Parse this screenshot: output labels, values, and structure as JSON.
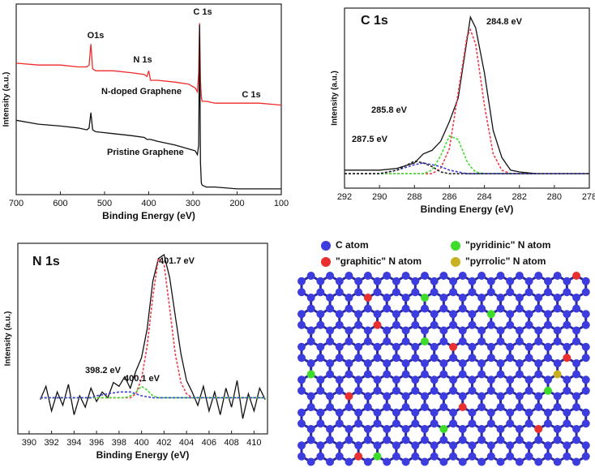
{
  "chart_data": [
    {
      "type": "line",
      "xlabel": "Binding Energy (eV)",
      "ylabel": "Intensity (a.u.)",
      "xlim": [
        700,
        100
      ],
      "ylim": [
        0,
        100
      ],
      "xticks": [
        700,
        600,
        500,
        400,
        300,
        200,
        100
      ],
      "annotations": [
        {
          "text": "O1s",
          "color": "#111111"
        },
        {
          "text": "N 1s",
          "color": "#111111"
        },
        {
          "text": "C 1s",
          "color": "#111111"
        },
        {
          "text": "C 1s",
          "color": "#111111"
        }
      ],
      "x": [
        700,
        650,
        600,
        560,
        540,
        535,
        531,
        527,
        520,
        480,
        440,
        410,
        404,
        400,
        396,
        380,
        340,
        310,
        295,
        290,
        287,
        285,
        283,
        281,
        279,
        270,
        250,
        200,
        150,
        100
      ],
      "series": [
        {
          "name": "N-doped Graphene",
          "color": "#ee2a2a",
          "values": [
            69,
            68,
            68,
            67,
            67,
            68,
            79,
            66,
            65,
            65,
            64,
            63,
            62,
            65,
            60,
            60,
            59,
            58,
            56,
            54,
            64,
            90,
            60,
            51,
            49,
            49,
            48,
            48,
            48,
            47
          ]
        },
        {
          "name": "Pristine Graphene",
          "color": "#111111",
          "values": [
            39,
            37,
            36,
            35,
            34,
            35,
            43,
            34,
            33,
            32,
            31,
            30,
            29,
            29,
            29,
            28,
            26,
            24,
            23,
            21,
            26,
            89,
            17,
            6,
            5,
            4,
            4,
            3,
            3,
            3
          ]
        }
      ]
    },
    {
      "type": "line",
      "title": "C 1s",
      "xlabel": "Binding Energy (eV)",
      "ylabel": "Intensity (a.u.)",
      "xlim": [
        292,
        278
      ],
      "ylim": [
        0,
        100
      ],
      "xticks": [
        292,
        290,
        288,
        286,
        284,
        282,
        280,
        278
      ],
      "annotations": [
        {
          "text": "284.8 eV",
          "color": "#e8344a"
        },
        {
          "text": "285.8 eV",
          "color": "#3fcf2a"
        },
        {
          "text": "287.5 eV",
          "color": "#3636d8"
        }
      ],
      "x": [
        292,
        291,
        290,
        289,
        288,
        287.5,
        287,
        286.5,
        286,
        285.5,
        285,
        284.8,
        284.5,
        284,
        283.5,
        283,
        282.5,
        282,
        281,
        280,
        279,
        278
      ],
      "series": [
        {
          "color": "#111111",
          "dash": false,
          "values": [
            10,
            10,
            10,
            11,
            14,
            19,
            21,
            26,
            37,
            50,
            82,
            95,
            89,
            64,
            32,
            17,
            10,
            9,
            8,
            8,
            8,
            8
          ]
        },
        {
          "color": "#ee3a4a",
          "dash": true,
          "values": [
            8,
            8,
            8,
            8,
            8,
            8,
            8,
            11,
            22,
            53,
            84,
            88,
            80,
            46,
            19,
            10,
            8,
            8,
            8,
            8,
            8,
            8
          ]
        },
        {
          "color": "#3fdc2a",
          "dash": true,
          "values": [
            8,
            8,
            8,
            8,
            8,
            8,
            10,
            18,
            29,
            27,
            15,
            12,
            9,
            8,
            8,
            8,
            8,
            8,
            8,
            8,
            8,
            8
          ]
        },
        {
          "color": "#3a3ad8",
          "dash": true,
          "values": [
            8,
            8,
            8,
            10,
            13,
            14,
            13,
            12,
            10,
            9,
            8,
            8,
            8,
            8,
            8,
            8,
            8,
            8,
            8,
            8,
            8,
            8
          ]
        },
        {
          "color": "#222222",
          "dash": true,
          "values": [
            8,
            8,
            8,
            10,
            15,
            14,
            12,
            9,
            8,
            8,
            8,
            8,
            8,
            8,
            8,
            8,
            8,
            8,
            8,
            8,
            8,
            8
          ]
        }
      ]
    },
    {
      "type": "line",
      "title": "N 1s",
      "xlabel": "Binding Energy (eV)",
      "ylabel": "Intensity (a.u.)",
      "xlim": [
        389,
        411.2
      ],
      "ylim": [
        0,
        100
      ],
      "xticks": [
        390,
        392,
        394,
        396,
        398,
        400,
        402,
        404,
        406,
        408,
        410
      ],
      "annotations": [
        {
          "text": "401.7 eV",
          "color": "#e8344a"
        },
        {
          "text": "400.1 eV",
          "color": "#3fcf2a"
        },
        {
          "text": "398.2 eV",
          "color": "#3636d8"
        }
      ],
      "x": [
        391,
        391.5,
        392,
        392.5,
        393,
        393.5,
        394,
        394.5,
        395,
        395.5,
        396,
        396.5,
        397,
        397.5,
        398,
        398.5,
        399,
        399.5,
        400,
        400.5,
        401,
        401.5,
        402,
        402.5,
        403,
        403.5,
        404,
        404.5,
        405,
        405.5,
        406,
        406.5,
        407,
        407.5,
        408,
        408.5,
        409,
        409.5,
        410,
        410.5,
        411
      ],
      "series": [
        {
          "color": "#111111",
          "dash": false,
          "values": [
            18,
            25,
            12,
            22,
            15,
            26,
            10,
            20,
            14,
            24,
            17,
            22,
            19,
            27,
            25,
            30,
            24,
            33,
            40,
            55,
            80,
            92,
            94,
            82,
            62,
            42,
            28,
            22,
            15,
            25,
            12,
            22,
            10,
            24,
            14,
            28,
            8,
            21,
            12,
            24,
            18
          ]
        },
        {
          "color": "#ee3a4a",
          "dash": true,
          "values": [
            19,
            19,
            19,
            19,
            19,
            19,
            19,
            19,
            19,
            19,
            19,
            19,
            19,
            19,
            19,
            19,
            19,
            21,
            29,
            46,
            72,
            92,
            89,
            66,
            42,
            27,
            21,
            19,
            19,
            19,
            19,
            19,
            19,
            19,
            19,
            19,
            19,
            19,
            19,
            19,
            19
          ]
        },
        {
          "color": "#3fdc2a",
          "dash": true,
          "values": [
            19,
            19,
            19,
            19,
            19,
            19,
            19,
            19,
            19,
            19,
            19,
            19,
            19,
            19,
            19,
            19,
            20,
            22,
            25,
            23,
            20,
            19,
            19,
            19,
            19,
            19,
            19,
            19,
            19,
            19,
            19,
            19,
            19,
            19,
            19,
            19,
            19,
            19,
            19,
            19,
            19
          ]
        },
        {
          "color": "#3a3ad8",
          "dash": true,
          "values": [
            19,
            19,
            19,
            19,
            19,
            19,
            19,
            19,
            19,
            19,
            20,
            20.5,
            21,
            21.5,
            22,
            22,
            22,
            21,
            20,
            19.5,
            19,
            19,
            19,
            19,
            19,
            19,
            19,
            19,
            19,
            19,
            19,
            19,
            19,
            19,
            19,
            19,
            19,
            19,
            19,
            19,
            19
          ]
        }
      ]
    }
  ],
  "diagram": {
    "legend": [
      {
        "label": "C atom",
        "color": "#3c3cdf",
        "text_color": "#3a3ad8"
      },
      {
        "label": "\"graphitic\" N atom",
        "color": "#e83030",
        "text_color": "#e8344a"
      },
      {
        "label": "\"pyridinic\" N atom",
        "color": "#3ddc2a",
        "text_color": "#3fcf2a"
      },
      {
        "label": "\"pyrrolic\" N atom",
        "color": "#c8b020",
        "text_color": "#f0a020"
      }
    ]
  }
}
